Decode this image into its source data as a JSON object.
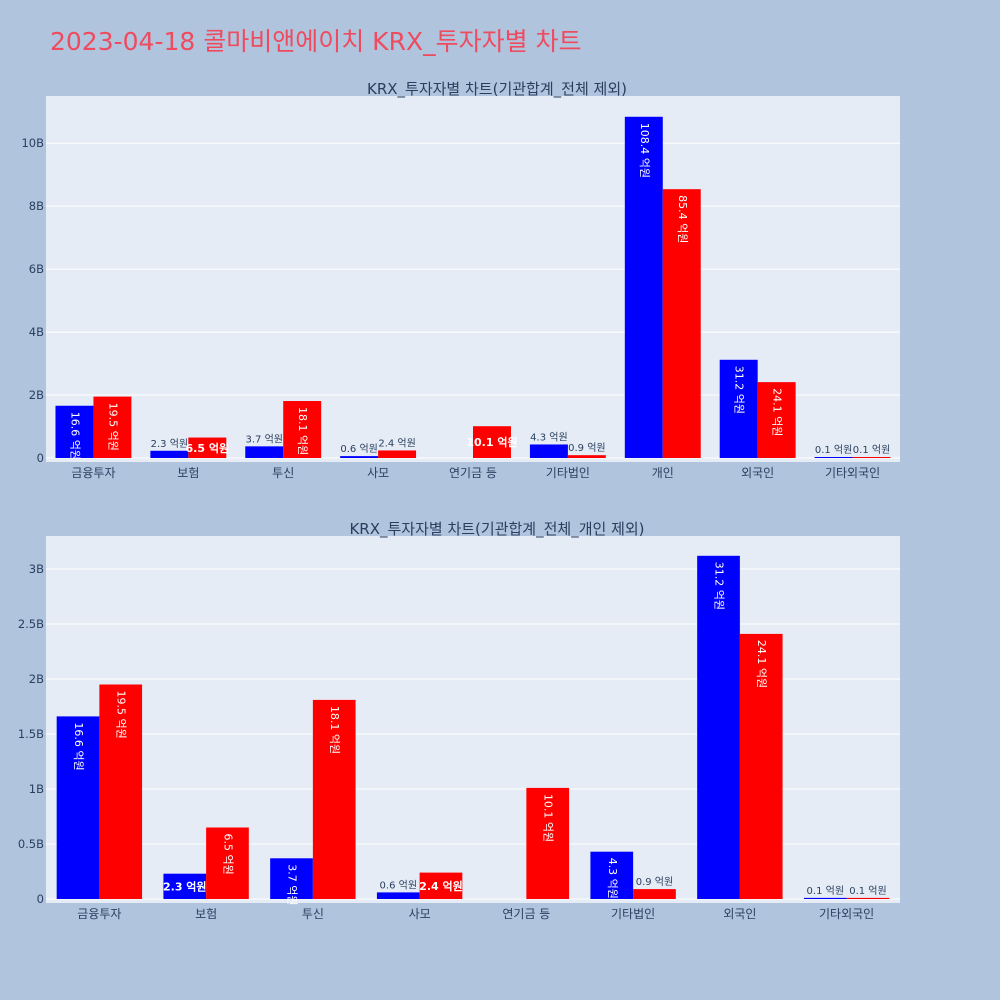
{
  "page_title": "2023-04-18 콜마비앤에이치 KRX_투자자별 차트",
  "chart_data": [
    {
      "type": "bar",
      "title": "KRX_투자자별 차트(기관합계_전체 제외)",
      "categories": [
        "금융투자",
        "보험",
        "투신",
        "사모",
        "연기금 등",
        "기타법인",
        "개인",
        "외국인",
        "기타외국인"
      ],
      "ylim": [
        0,
        11.5
      ],
      "yticks": [
        0,
        2,
        4,
        6,
        8,
        10
      ],
      "ytick_labels": [
        "0",
        "2B",
        "4B",
        "6B",
        "8B",
        "10B"
      ],
      "series": [
        {
          "color": "#0000ff",
          "values": [
            1.66,
            0.23,
            0.37,
            0.06,
            0,
            0.43,
            10.84,
            3.12,
            0.01
          ],
          "labels": [
            "16.6 억원",
            "2.3 억원",
            "3.7 억원",
            "0.6 억원",
            "",
            "4.3 억원",
            "108.4 억원",
            "31.2 억원",
            "0.1 억원"
          ]
        },
        {
          "color": "#ff0000",
          "values": [
            1.95,
            0.65,
            1.81,
            0.24,
            1.01,
            0.09,
            8.54,
            2.41,
            0.01
          ],
          "labels": [
            "19.5 억원",
            "6.5 억원",
            "18.1 억원",
            "2.4 억원",
            "10.1 억원",
            "0.9 억원",
            "85.4 억원",
            "24.1 억원",
            "0.1 억원"
          ]
        }
      ],
      "grid": true
    },
    {
      "type": "bar",
      "title": "KRX_투자자별 차트(기관합계_전체_개인 제외)",
      "categories": [
        "금융투자",
        "보험",
        "투신",
        "사모",
        "연기금 등",
        "기타법인",
        "외국인",
        "기타외국인"
      ],
      "ylim": [
        0,
        3.3
      ],
      "yticks": [
        0,
        0.5,
        1,
        1.5,
        2,
        2.5,
        3
      ],
      "ytick_labels": [
        "0",
        "0.5B",
        "1B",
        "1.5B",
        "2B",
        "2.5B",
        "3B"
      ],
      "series": [
        {
          "color": "#0000ff",
          "values": [
            1.66,
            0.23,
            0.37,
            0.06,
            0,
            0.43,
            3.12,
            0.01
          ],
          "labels": [
            "16.6 억원",
            "2.3 억원",
            "3.7 억원",
            "0.6 억원",
            "",
            "4.3 억원",
            "31.2 억원",
            "0.1 억원"
          ]
        },
        {
          "color": "#ff0000",
          "values": [
            1.95,
            0.65,
            1.81,
            0.24,
            1.01,
            0.09,
            2.41,
            0.01
          ],
          "labels": [
            "19.5 억원",
            "6.5 억원",
            "18.1 억원",
            "2.4 억원",
            "10.1 억원",
            "0.9 억원",
            "24.1 억원",
            "0.1 억원"
          ]
        }
      ],
      "grid": true
    }
  ]
}
